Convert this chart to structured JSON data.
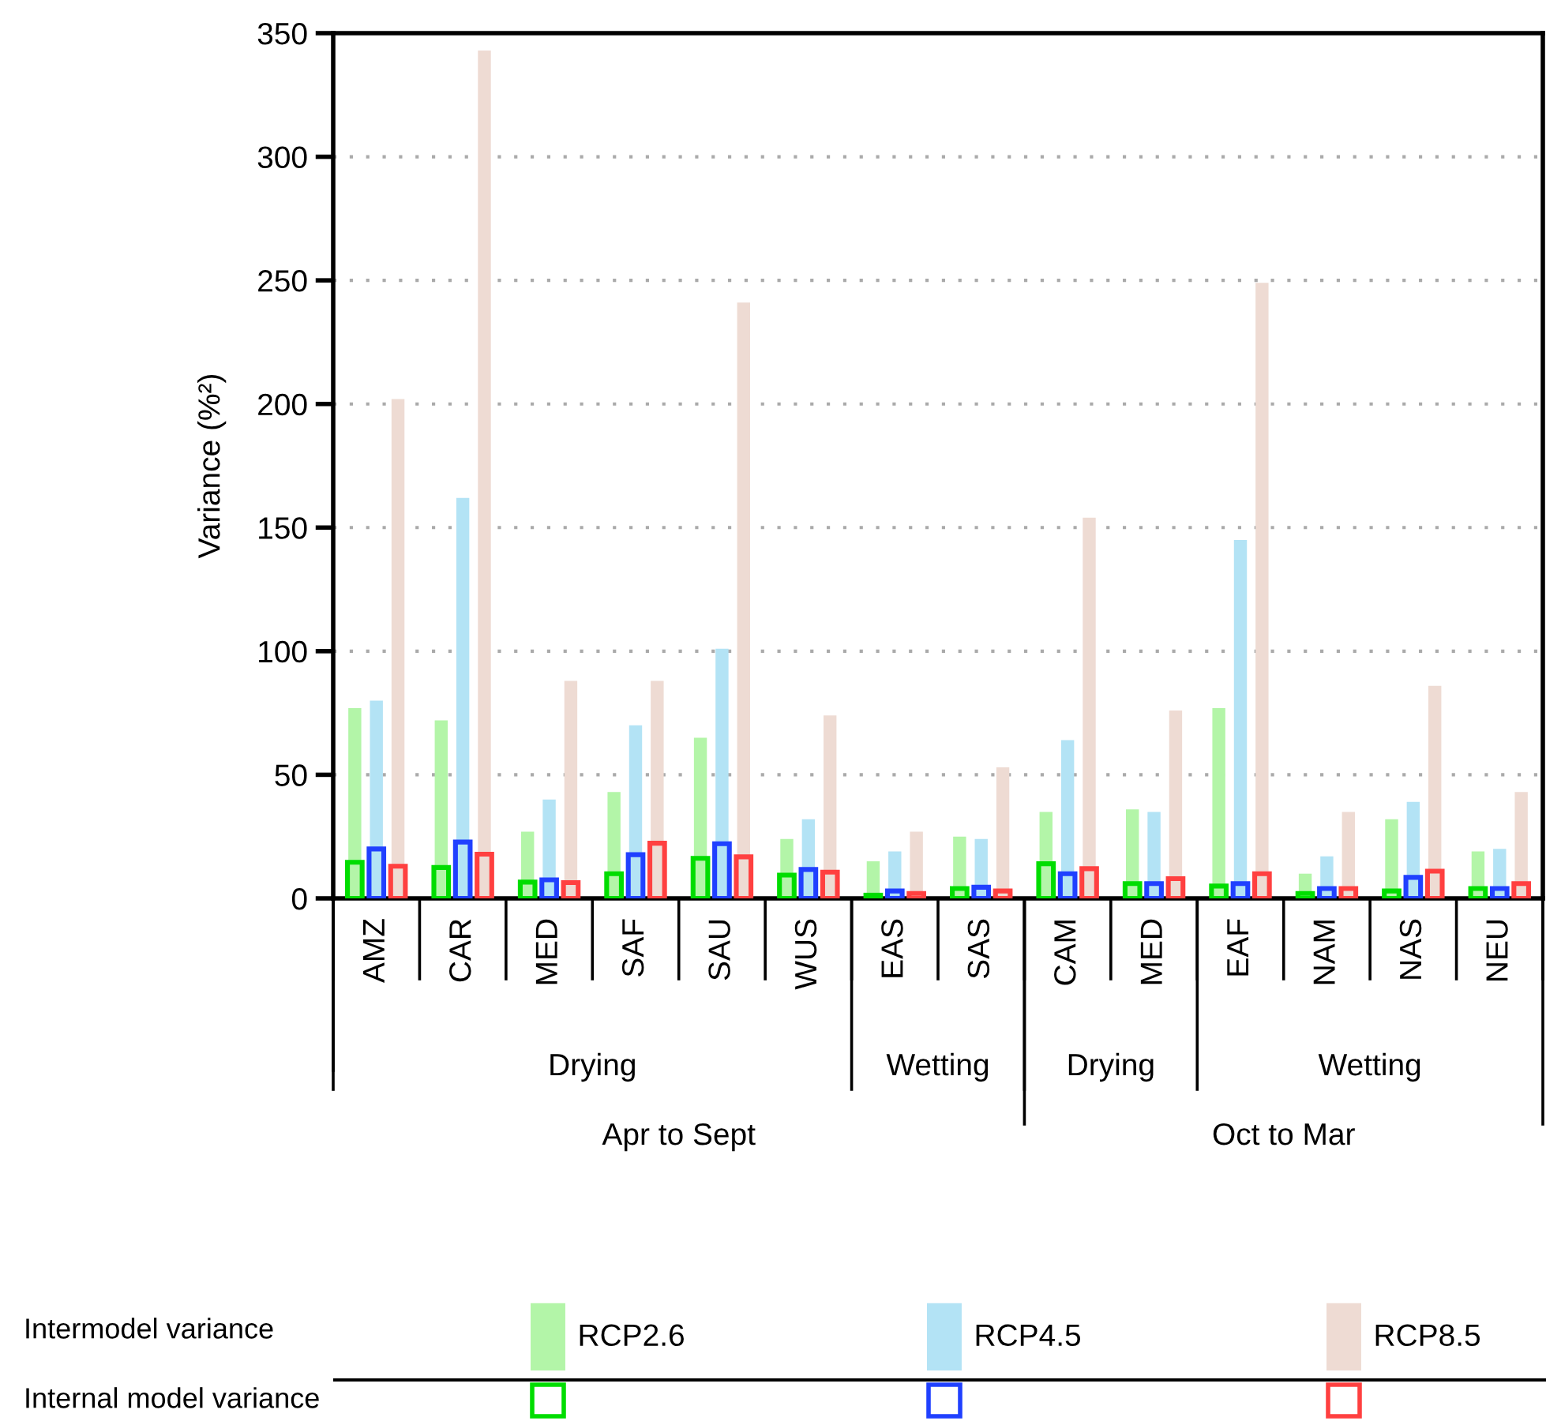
{
  "chart_data": {
    "type": "bar",
    "ylabel": "Variance (%²)",
    "categories": [
      "AMZ",
      "CAR",
      "MED",
      "SAF",
      "SAU",
      "WUS",
      "EAS",
      "SAS",
      "CAM",
      "MED",
      "EAF",
      "NAM",
      "NAS",
      "NEU"
    ],
    "series": [
      {
        "name": "RCP2.6",
        "color": "#b3f5a8",
        "values": [
          77,
          72,
          27,
          43,
          65,
          24,
          15,
          25,
          35,
          36,
          77,
          10,
          32,
          19
        ]
      },
      {
        "name": "RCP4.5",
        "color": "#b3e3f5",
        "values": [
          80,
          162,
          40,
          70,
          101,
          32,
          19,
          24,
          64,
          35,
          145,
          17,
          39,
          20
        ]
      },
      {
        "name": "RCP8.5",
        "color": "#eedbd3",
        "values": [
          202,
          343,
          88,
          88,
          241,
          74,
          27,
          53,
          154,
          76,
          249,
          35,
          86,
          43
        ]
      },
      {
        "color": "#00dd00",
        "values": [
          14.6,
          12.5,
          6.6,
          10,
          16.2,
          9.4,
          1.3,
          4,
          14,
          6,
          5,
          2,
          3,
          4
        ]
      },
      {
        "color": "#2040ff",
        "values": [
          20,
          22.8,
          7.5,
          17.7,
          22.1,
          11.7,
          3,
          4.5,
          10,
          6,
          6,
          4,
          8.5,
          4
        ]
      },
      {
        "color": "#ff4040",
        "values": [
          13,
          17.9,
          6.4,
          22.3,
          16.8,
          10.6,
          2,
          3,
          12,
          8,
          10,
          4,
          11,
          6
        ]
      }
    ],
    "ylim": [
      0,
      350
    ],
    "yticks": [
      0,
      50,
      100,
      150,
      200,
      250,
      300,
      350
    ],
    "grid": "y",
    "legend": "bottom",
    "annotations": [
      "Drying",
      "Wetting",
      "Drying",
      "Wetting",
      "Apr to Sept",
      "Oct to Mar",
      "Intermodel variance",
      "Internal model variance"
    ]
  }
}
